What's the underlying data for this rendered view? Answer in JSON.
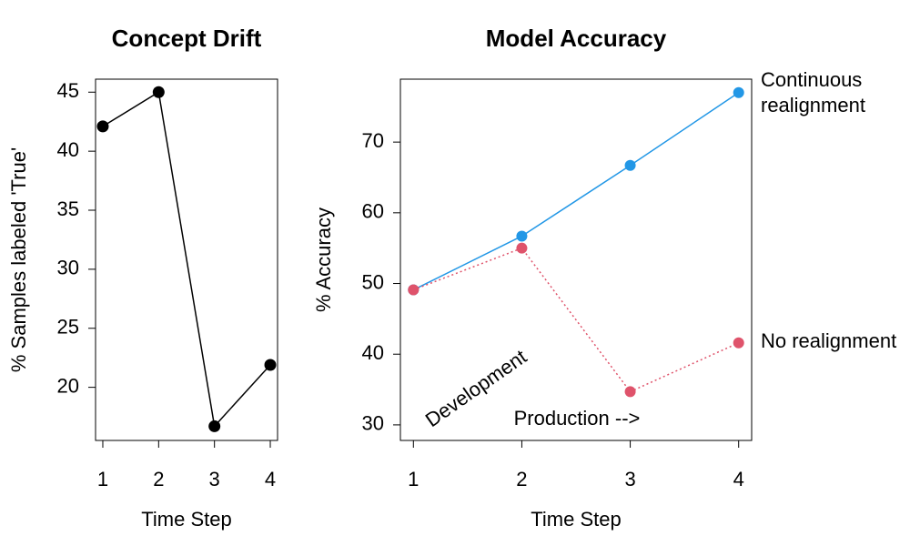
{
  "chart_data": [
    {
      "type": "line",
      "title": "Concept Drift",
      "xlabel": "Time Step",
      "ylabel": "% Samples labeled 'True'",
      "x": [
        1,
        2,
        3,
        4
      ],
      "values": [
        42.1,
        45,
        16.7,
        21.9
      ],
      "color": "#000000",
      "xlim": [
        0.87,
        4.13
      ],
      "xticks": [
        1,
        2,
        3,
        4
      ],
      "ylim": [
        15.5,
        46.1
      ],
      "yticks": [
        20,
        25,
        30,
        35,
        40,
        45
      ]
    },
    {
      "type": "line",
      "title": "Model Accuracy",
      "xlabel": "Time Step",
      "ylabel": "% Accuracy",
      "x": [
        1,
        2,
        3,
        4
      ],
      "series": [
        {
          "name": "Continuous realignment",
          "color": "#2297E6",
          "linestyle": "solid",
          "values": [
            49.1,
            56.7,
            66.7,
            77
          ]
        },
        {
          "name": "No realignment",
          "color": "#DF536B",
          "linestyle": "dotted",
          "values": [
            49.1,
            55,
            34.7,
            41.6
          ]
        }
      ],
      "annotations": [
        "Development",
        "Production -->"
      ],
      "xlim": [
        0.88,
        4.12
      ],
      "xticks": [
        1,
        2,
        3,
        4
      ],
      "ylim": [
        27.8,
        78.9
      ],
      "yticks": [
        30,
        40,
        50,
        60,
        70
      ]
    }
  ]
}
